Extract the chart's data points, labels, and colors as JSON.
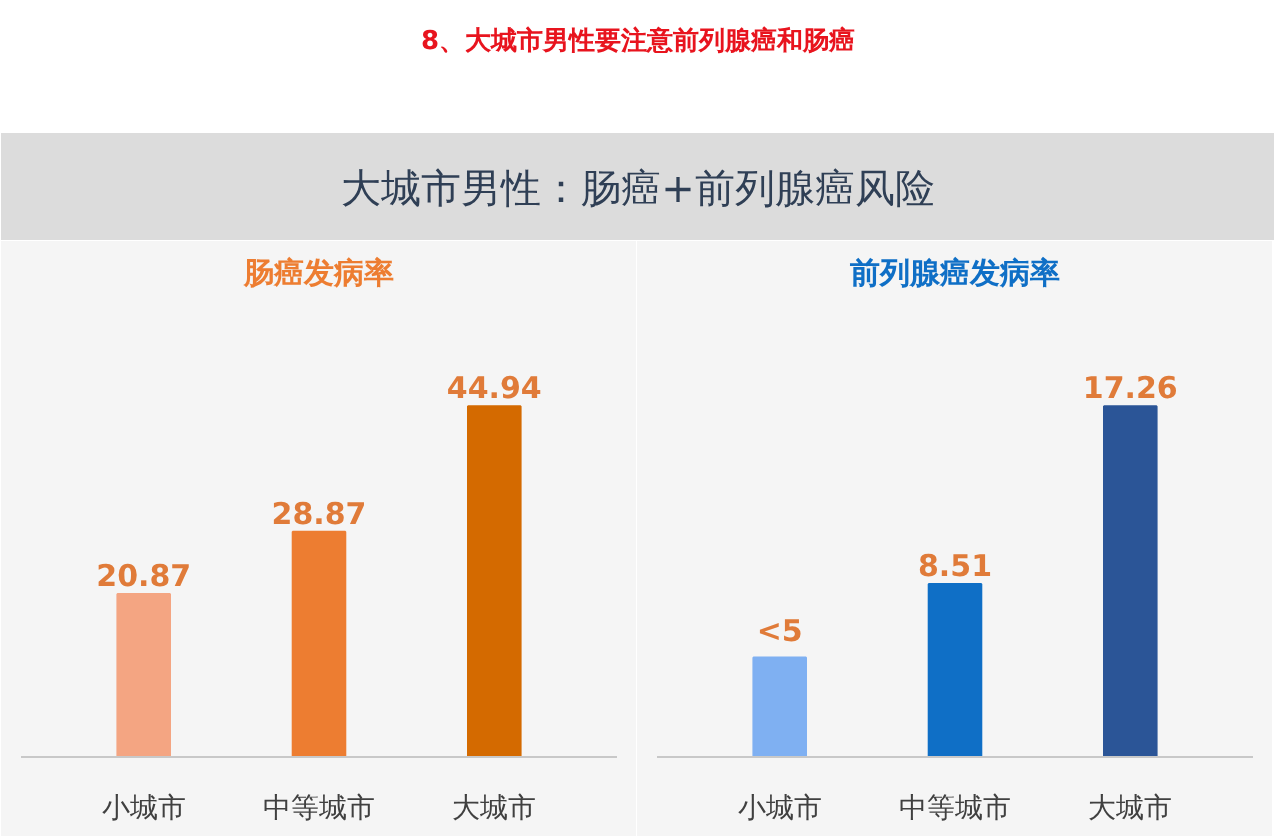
{
  "chart_data": [
    {
      "type": "other",
      "title": "8、大城市男性要注意前列腺癌和肠癌",
      "subtitle": "大城市男性：肠癌+前列腺癌风险"
    },
    {
      "type": "bar",
      "title": "肠癌发病率",
      "categories": [
        "小城市",
        "中等城市",
        "大城市"
      ],
      "values": [
        20.87,
        28.87,
        44.94
      ],
      "colors": [
        "#f4a582",
        "#ed7d31",
        "#d46a00"
      ],
      "data_labels": true
    },
    {
      "type": "bar",
      "title": "前列腺癌发病率",
      "categories": [
        "小城市",
        "中等城市",
        "大城市"
      ],
      "values": [
        4.9,
        8.51,
        17.26
      ],
      "value_labels": [
        "<5",
        "8.51",
        "17.26"
      ],
      "colors": [
        "#7fb0f2",
        "#0f6fc6",
        "#2b5597"
      ]
    }
  ]
}
